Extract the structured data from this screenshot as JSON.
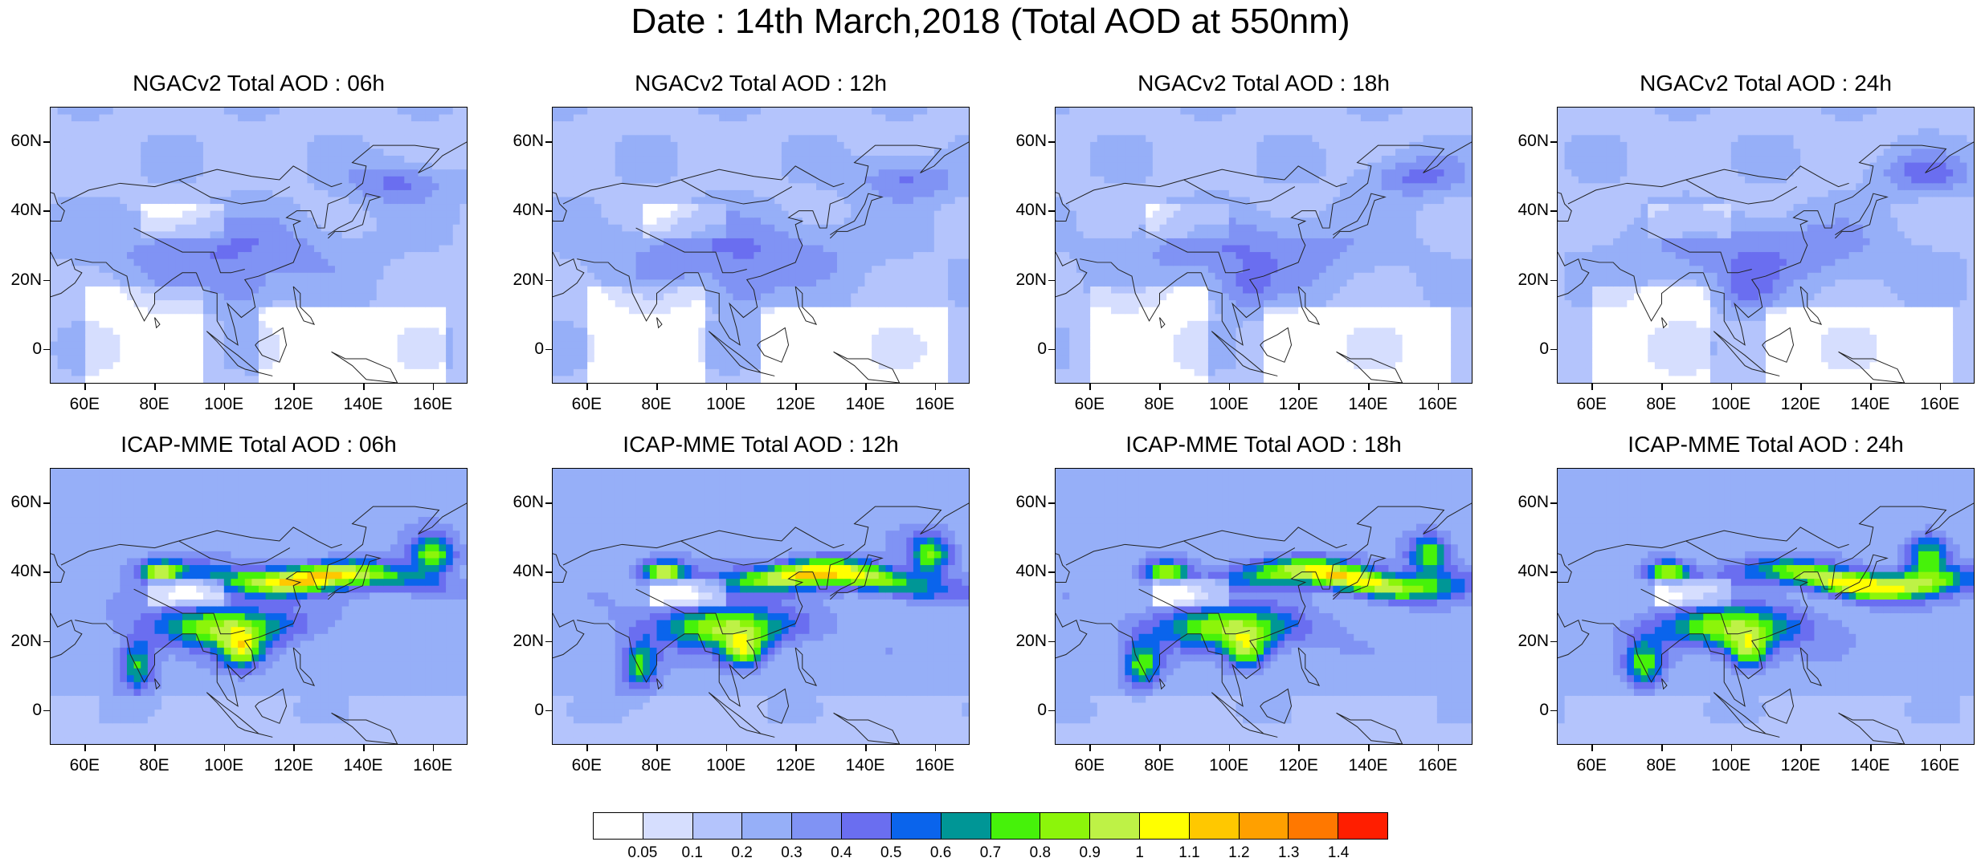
{
  "title": "Date : 14th March,2018 (Total AOD at 550nm)",
  "x_ticks": [
    "60E",
    "80E",
    "100E",
    "120E",
    "140E",
    "160E"
  ],
  "y_ticks": [
    "60N",
    "40N",
    "20N",
    "0"
  ],
  "panels": [
    {
      "title": "NGACv2 Total AOD : 06h",
      "model": "NGACv2",
      "hour": "06h"
    },
    {
      "title": "NGACv2 Total AOD : 12h",
      "model": "NGACv2",
      "hour": "12h"
    },
    {
      "title": "NGACv2 Total AOD : 18h",
      "model": "NGACv2",
      "hour": "18h"
    },
    {
      "title": "NGACv2 Total AOD : 24h",
      "model": "NGACv2",
      "hour": "24h"
    },
    {
      "title": "ICAP-MME Total AOD : 06h",
      "model": "ICAP-MME",
      "hour": "06h"
    },
    {
      "title": "ICAP-MME Total AOD : 12h",
      "model": "ICAP-MME",
      "hour": "12h"
    },
    {
      "title": "ICAP-MME Total AOD : 18h",
      "model": "ICAP-MME",
      "hour": "18h"
    },
    {
      "title": "ICAP-MME Total AOD : 24h",
      "model": "ICAP-MME",
      "hour": "24h"
    }
  ],
  "colorbar": {
    "labels": [
      "0.05",
      "0.1",
      "0.2",
      "0.3",
      "0.4",
      "0.5",
      "0.6",
      "0.7",
      "0.8",
      "0.9",
      "1",
      "1.1",
      "1.2",
      "1.3",
      "1.4"
    ],
    "colors": [
      "#ffffff",
      "#d6defe",
      "#b4c4fc",
      "#96aff8",
      "#8093f4",
      "#6a6ef0",
      "#0a64ec",
      "#009696",
      "#46f20a",
      "#8cf50a",
      "#bef246",
      "#ffff00",
      "#ffc800",
      "#ffa000",
      "#ff7800",
      "#ff1e00"
    ]
  }
}
